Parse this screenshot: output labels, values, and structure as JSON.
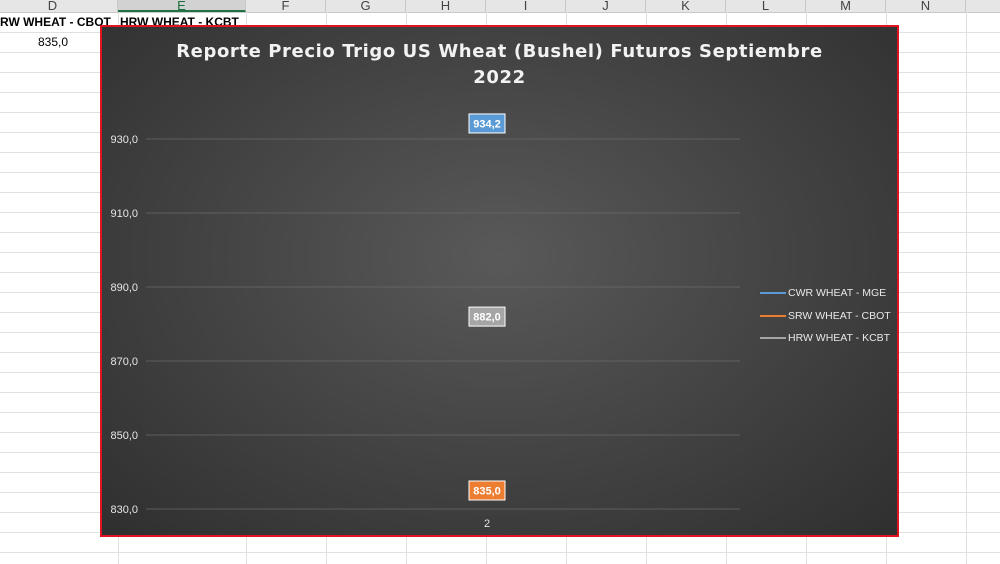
{
  "spreadsheet": {
    "columns": [
      "D",
      "E",
      "F",
      "G",
      "H",
      "I",
      "J",
      "K",
      "L",
      "M",
      "N"
    ],
    "selected_column": "E",
    "cells": {
      "d1": "RW WHEAT - CBOT",
      "e1": "HRW WHEAT - KCBT",
      "d2": "835,0"
    }
  },
  "chart_data": {
    "type": "line",
    "title": "Reporte Precio Trigo US Wheat (Bushel) Futuros Septiembre 2022",
    "title_lines": [
      "Reporte Precio Trigo US Wheat (Bushel) Futuros Septiembre",
      "2022"
    ],
    "categories": [
      "2"
    ],
    "ylim": [
      830,
      930
    ],
    "yticks": [
      830,
      850,
      870,
      890,
      910,
      930
    ],
    "ytick_labels": [
      "830,0",
      "850,0",
      "870,0",
      "890,0",
      "910,0",
      "930,0"
    ],
    "grid": true,
    "legend_position": "right",
    "series": [
      {
        "name": "CWR WHEAT - MGE",
        "values": [
          934.2
        ],
        "label": "934,2",
        "color": "#5b9bd5"
      },
      {
        "name": "SRW WHEAT - CBOT",
        "values": [
          835.0
        ],
        "label": "835,0",
        "color": "#ed7d31"
      },
      {
        "name": "HRW WHEAT - KCBT",
        "values": [
          882.0
        ],
        "label": "882,0",
        "color": "#a5a5a5"
      }
    ]
  }
}
